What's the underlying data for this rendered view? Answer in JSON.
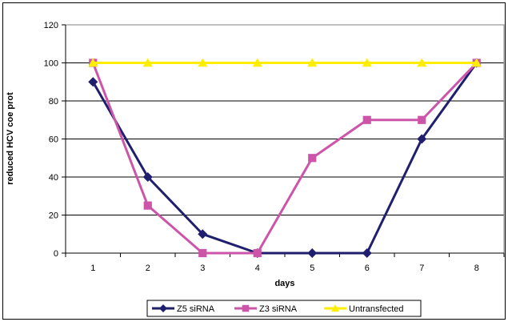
{
  "chart_data": {
    "type": "line",
    "xlabel": "days",
    "ylabel": "reduced HCV coe prot",
    "categories": [
      "1",
      "2",
      "3",
      "4",
      "5",
      "6",
      "7",
      "8"
    ],
    "ylim": [
      0,
      120
    ],
    "yticks": [
      0,
      20,
      40,
      60,
      80,
      100,
      120
    ],
    "grid": true,
    "legend_position": "bottom",
    "series": [
      {
        "name": "Z5 siRNA",
        "values": [
          90,
          40,
          10,
          0,
          0,
          0,
          60,
          100
        ],
        "color": "#1f1f6e",
        "marker": "diamond"
      },
      {
        "name": "Z3 siRNA",
        "values": [
          100,
          25,
          0,
          0,
          50,
          70,
          70,
          100
        ],
        "color": "#cc55aa",
        "marker": "square"
      },
      {
        "name": "Untransfected",
        "values": [
          100,
          100,
          100,
          100,
          100,
          100,
          100,
          100
        ],
        "color": "#ffee00",
        "marker": "triangle"
      }
    ]
  }
}
